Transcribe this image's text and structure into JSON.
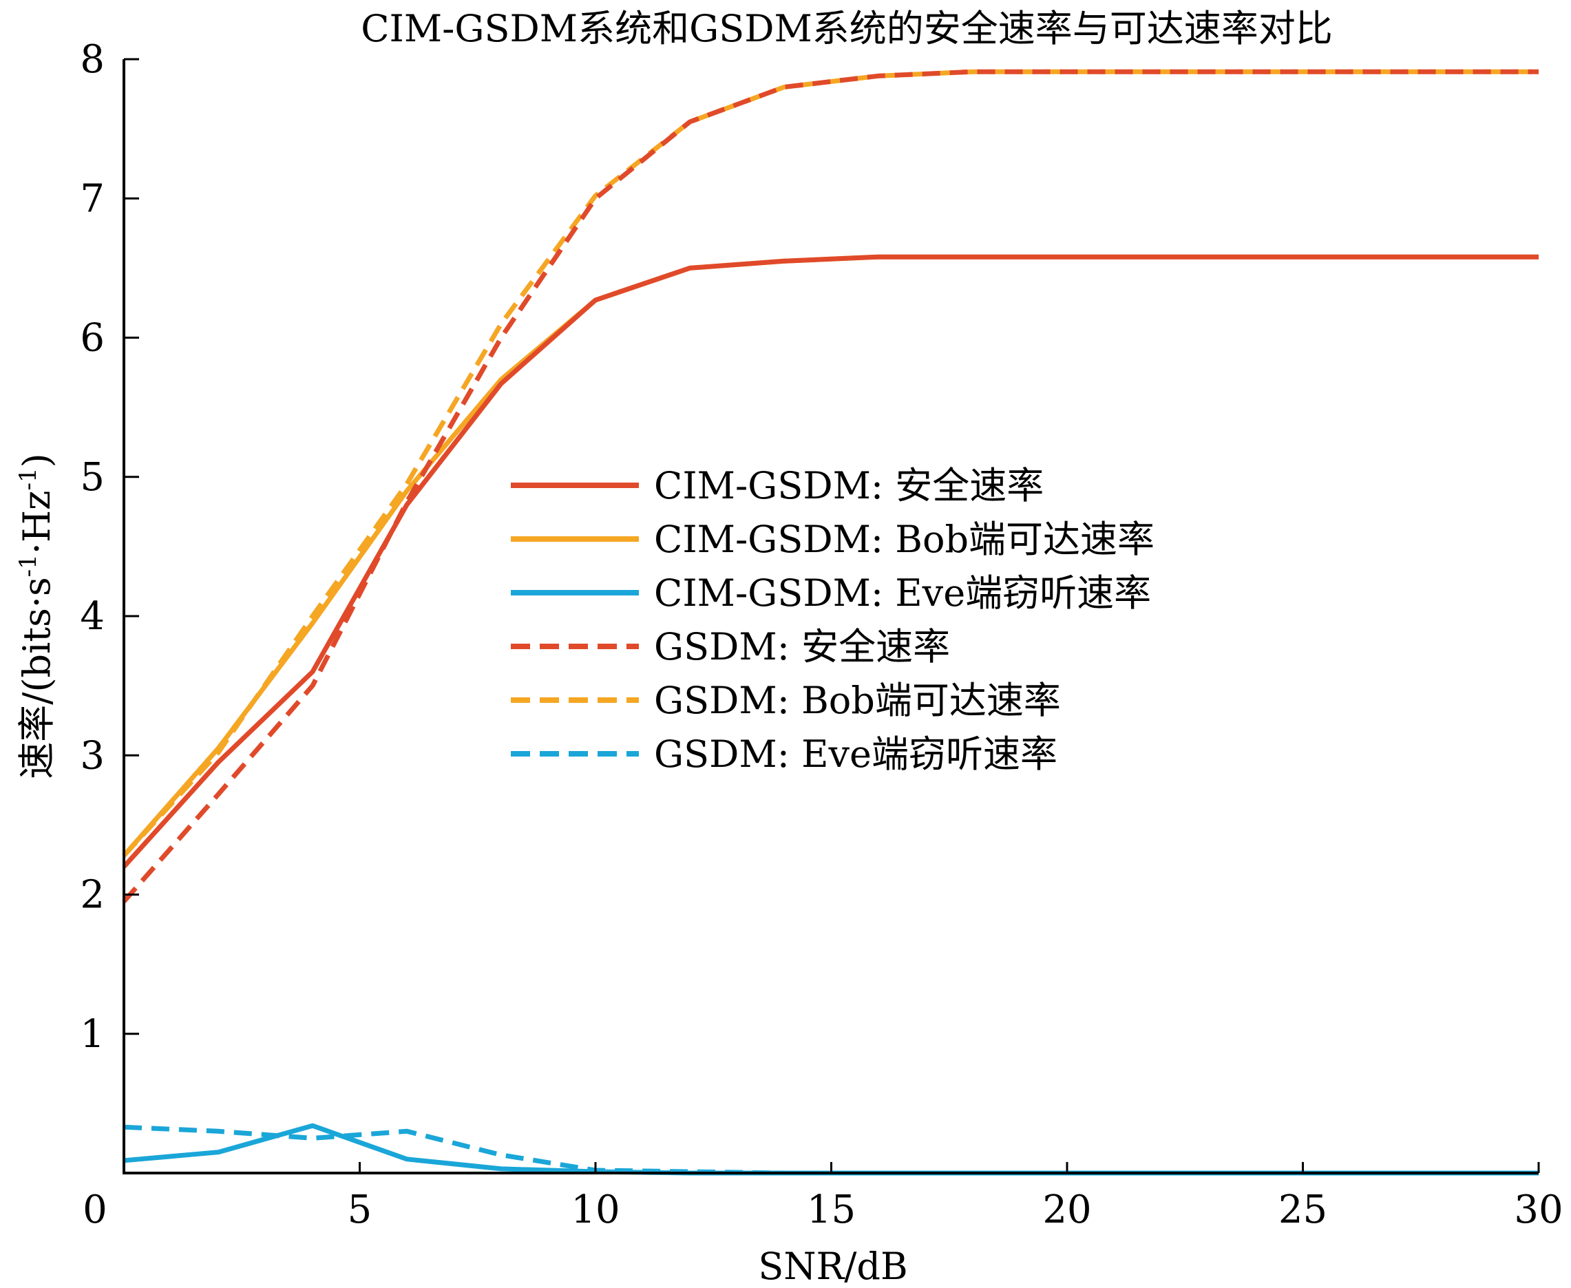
{
  "chart_data": {
    "type": "line",
    "title": "CIM-GSDM系统和GSDM系统的安全速率与可达速率对比",
    "xlabel": "SNR/dB",
    "ylabel_main": "速率/(bits·s",
    "ylabel_sup1": "-1",
    "ylabel_mid": "·Hz",
    "ylabel_sup2": "-1",
    "ylabel_end": ")",
    "xlim": [
      0,
      30
    ],
    "ylim": [
      0,
      8
    ],
    "xticks": [
      "0",
      "5",
      "10",
      "15",
      "20",
      "25",
      "30"
    ],
    "yticks": [
      "1",
      "2",
      "3",
      "4",
      "5",
      "6",
      "7",
      "8"
    ],
    "grid": false,
    "legend_position": "center",
    "x": [
      0,
      2,
      4,
      6,
      8,
      10,
      12,
      14,
      16,
      18,
      20,
      22,
      24,
      26,
      28,
      30
    ],
    "series": [
      {
        "name": "CIM-GSDM: 安全速率",
        "color": "#e04a2a",
        "dash": false,
        "values": [
          2.2,
          2.95,
          3.6,
          4.8,
          5.67,
          6.27,
          6.5,
          6.55,
          6.58,
          6.58,
          6.58,
          6.58,
          6.58,
          6.58,
          6.58,
          6.58
        ]
      },
      {
        "name": "CIM-GSDM: Bob端可达速率",
        "color": "#f5a623",
        "dash": false,
        "values": [
          2.28,
          3.05,
          3.95,
          4.9,
          5.7,
          6.27,
          6.5,
          6.55,
          6.58,
          6.58,
          6.58,
          6.58,
          6.58,
          6.58,
          6.58,
          6.58
        ]
      },
      {
        "name": "CIM-GSDM: Eve端窃听速率",
        "color": "#1aa6d8",
        "dash": false,
        "values": [
          0.09,
          0.15,
          0.34,
          0.1,
          0.03,
          0.01,
          0.0,
          0.0,
          0.0,
          0.0,
          0.0,
          0.0,
          0.0,
          0.0,
          0.0,
          0.0
        ]
      },
      {
        "name": "GSDM: 安全速率",
        "color": "#e04a2a",
        "dash": true,
        "values": [
          1.95,
          2.72,
          3.5,
          4.82,
          6.0,
          7.0,
          7.55,
          7.8,
          7.88,
          7.91,
          7.91,
          7.91,
          7.91,
          7.91,
          7.91,
          7.91
        ]
      },
      {
        "name": "GSDM: Bob端可达速率",
        "color": "#f5a623",
        "dash": true,
        "values": [
          2.28,
          3.02,
          4.0,
          4.95,
          6.1,
          7.02,
          7.55,
          7.8,
          7.88,
          7.91,
          7.91,
          7.91,
          7.91,
          7.91,
          7.91,
          7.91
        ]
      },
      {
        "name": "GSDM: Eve端窃听速率",
        "color": "#1aa6d8",
        "dash": true,
        "values": [
          0.33,
          0.3,
          0.25,
          0.3,
          0.13,
          0.02,
          0.01,
          0.0,
          0.0,
          0.0,
          0.0,
          0.0,
          0.0,
          0.0,
          0.0,
          0.0
        ]
      }
    ]
  }
}
